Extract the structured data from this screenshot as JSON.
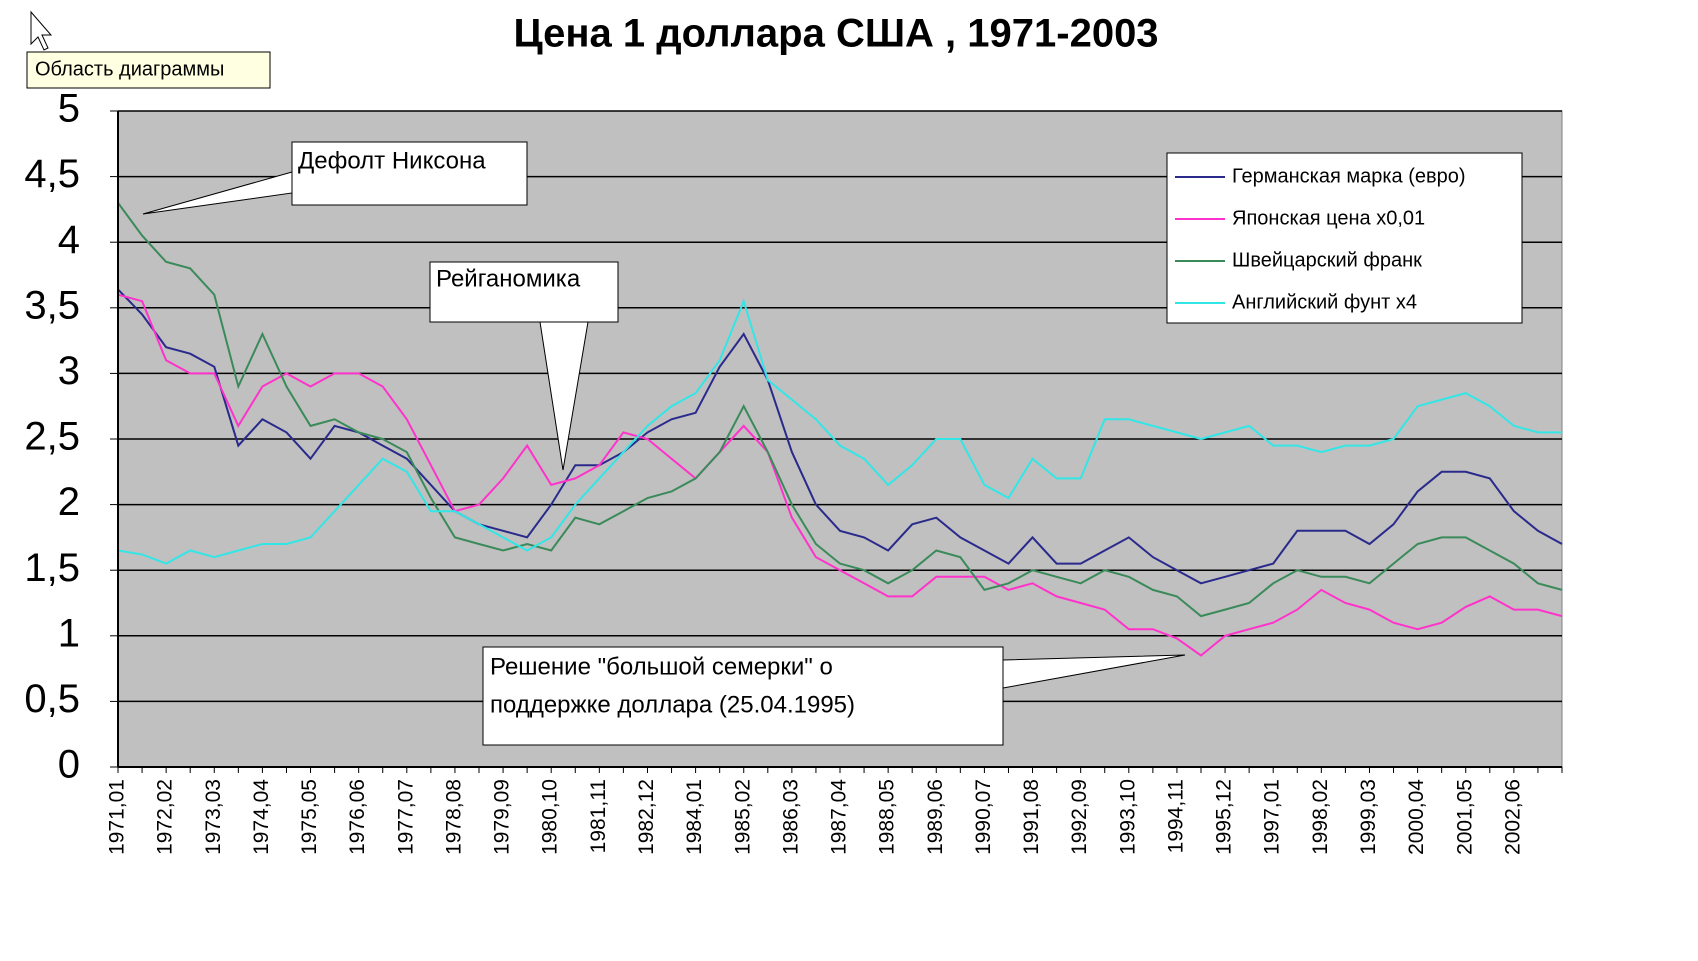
{
  "chart_data": {
    "type": "line",
    "title": "Цена 1 доллара США , 1971-2003",
    "tooltip": "Область диаграммы",
    "categories": [
      "1971,01",
      null,
      "1972,02",
      null,
      "1973,03",
      null,
      "1974,04",
      null,
      "1975,05",
      null,
      "1976,06",
      null,
      "1977,07",
      null,
      "1978,08",
      null,
      "1979,09",
      null,
      "1980,10",
      null,
      "1981,11",
      null,
      "1982,12",
      null,
      "1984,01",
      null,
      "1985,02",
      null,
      "1986,03",
      null,
      "1987,04",
      null,
      "1988,05",
      null,
      "1989,06",
      null,
      "1990,07",
      null,
      "1991,08",
      null,
      "1992,09",
      null,
      "1993,10",
      null,
      "1994,11",
      null,
      "1995,12",
      null,
      "1997,01",
      null,
      "1998,02",
      null,
      "1999,03",
      null,
      "2000,04",
      null,
      "2001,05",
      null,
      "2002,06",
      null,
      null
    ],
    "series": [
      {
        "name": "Германская марка (евро)",
        "color": "#2a2a8c",
        "values": [
          3.64,
          3.45,
          3.2,
          3.15,
          3.05,
          2.45,
          2.65,
          2.55,
          2.35,
          2.6,
          2.55,
          2.45,
          2.35,
          2.15,
          1.95,
          1.85,
          1.8,
          1.75,
          2.0,
          2.3,
          2.3,
          2.4,
          2.55,
          2.65,
          2.7,
          3.05,
          3.3,
          2.95,
          2.4,
          2.0,
          1.8,
          1.75,
          1.65,
          1.85,
          1.9,
          1.75,
          1.65,
          1.55,
          1.75,
          1.55,
          1.55,
          1.65,
          1.75,
          1.6,
          1.5,
          1.4,
          1.45,
          1.5,
          1.55,
          1.8,
          1.8,
          1.8,
          1.7,
          1.85,
          2.1,
          2.25,
          2.25,
          2.2,
          1.95,
          1.8,
          1.7
        ]
      },
      {
        "name": "Японская цена х0,01",
        "color": "#ff33cc",
        "values": [
          3.6,
          3.55,
          3.1,
          3.0,
          3.0,
          2.6,
          2.9,
          3.0,
          2.9,
          3.0,
          3.0,
          2.9,
          2.65,
          2.3,
          1.95,
          2.0,
          2.2,
          2.45,
          2.15,
          2.2,
          2.3,
          2.55,
          2.5,
          2.35,
          2.2,
          2.4,
          2.6,
          2.4,
          1.9,
          1.6,
          1.5,
          1.4,
          1.3,
          1.3,
          1.45,
          1.45,
          1.45,
          1.35,
          1.4,
          1.3,
          1.25,
          1.2,
          1.05,
          1.05,
          0.98,
          0.85,
          1.0,
          1.05,
          1.1,
          1.2,
          1.35,
          1.25,
          1.2,
          1.1,
          1.05,
          1.1,
          1.22,
          1.3,
          1.2,
          1.2,
          1.15
        ]
      },
      {
        "name": "Швейцарский франк",
        "color": "#3a8a5a",
        "values": [
          4.3,
          4.05,
          3.85,
          3.8,
          3.6,
          2.9,
          3.3,
          2.9,
          2.6,
          2.65,
          2.55,
          2.5,
          2.4,
          2.05,
          1.75,
          1.7,
          1.65,
          1.7,
          1.65,
          1.9,
          1.85,
          1.95,
          2.05,
          2.1,
          2.2,
          2.4,
          2.75,
          2.4,
          2.0,
          1.7,
          1.55,
          1.5,
          1.4,
          1.5,
          1.65,
          1.6,
          1.35,
          1.4,
          1.5,
          1.45,
          1.4,
          1.5,
          1.45,
          1.35,
          1.3,
          1.15,
          1.2,
          1.25,
          1.4,
          1.5,
          1.45,
          1.45,
          1.4,
          1.55,
          1.7,
          1.75,
          1.75,
          1.65,
          1.55,
          1.4,
          1.35
        ]
      },
      {
        "name": "Английский фунт х4",
        "color": "#33e6e6",
        "values": [
          1.65,
          1.62,
          1.55,
          1.65,
          1.6,
          1.65,
          1.7,
          1.7,
          1.75,
          1.95,
          2.15,
          2.35,
          2.25,
          1.95,
          1.95,
          1.85,
          1.75,
          1.65,
          1.75,
          2.0,
          2.2,
          2.4,
          2.6,
          2.75,
          2.85,
          3.1,
          3.55,
          2.95,
          2.8,
          2.65,
          2.45,
          2.35,
          2.15,
          2.3,
          2.5,
          2.5,
          2.15,
          2.05,
          2.35,
          2.2,
          2.2,
          2.65,
          2.65,
          2.6,
          2.55,
          2.5,
          2.55,
          2.6,
          2.45,
          2.45,
          2.4,
          2.45,
          2.45,
          2.5,
          2.75,
          2.8,
          2.85,
          2.75,
          2.6,
          2.55,
          2.55
        ]
      }
    ],
    "ylim": [
      0,
      5
    ],
    "yticks": [
      0,
      {
        "value": 0.5,
        "label": "0,5"
      },
      1,
      {
        "value": 1.5,
        "label": "1,5"
      },
      2,
      {
        "value": 2.5,
        "label": "2,5"
      },
      3,
      {
        "value": 3.5,
        "label": "3,5"
      },
      4,
      {
        "value": 4.5,
        "label": "4,5"
      },
      5
    ],
    "grid": true,
    "legend": "upper right",
    "annotations": [
      {
        "lines": [
          "Дефолт Никсона"
        ]
      },
      {
        "lines": [
          "Рейганомика"
        ]
      },
      {
        "lines": [
          "Решение \"большой семерки\" о",
          "поддержке доллара (25.04.1995)"
        ]
      }
    ]
  }
}
